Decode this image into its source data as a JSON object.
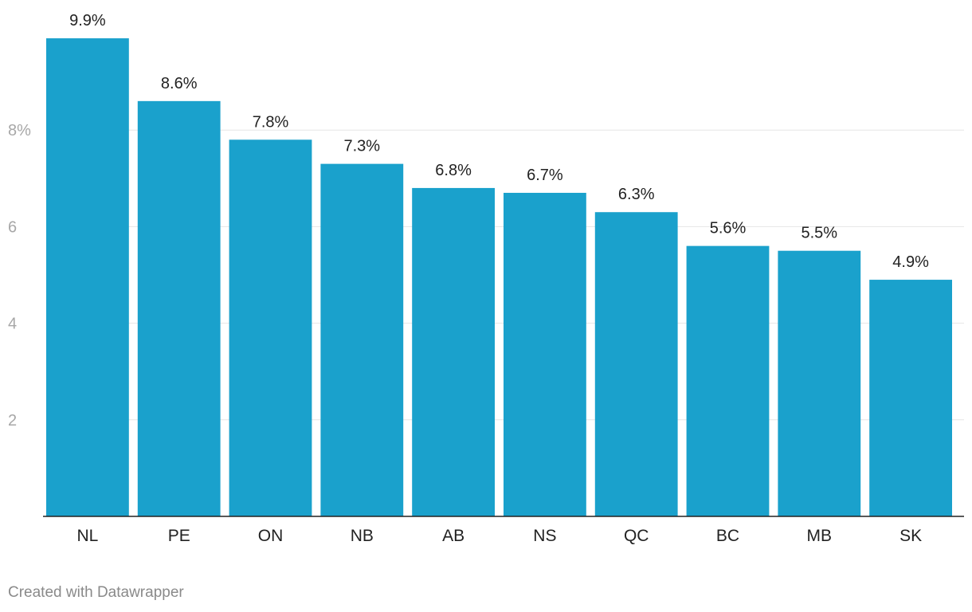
{
  "chart_data": {
    "type": "bar",
    "categories": [
      "NL",
      "PE",
      "ON",
      "NB",
      "AB",
      "NS",
      "QC",
      "BC",
      "MB",
      "SK"
    ],
    "values": [
      9.9,
      8.6,
      7.8,
      7.3,
      6.8,
      6.7,
      6.3,
      5.6,
      5.5,
      4.9
    ],
    "value_labels": [
      "9.9%",
      "8.6%",
      "7.8%",
      "7.3%",
      "6.8%",
      "6.7%",
      "6.3%",
      "5.6%",
      "5.5%",
      "4.9%"
    ],
    "yticks": [
      2,
      4,
      6,
      8
    ],
    "ytick_labels": [
      "2",
      "4",
      "6",
      "8%"
    ],
    "ylim": [
      0,
      10
    ],
    "grid": true,
    "title": "",
    "xlabel": "",
    "ylabel": "",
    "bar_color": "#1aa1cc"
  },
  "footer": {
    "credit": "Created with Datawrapper"
  }
}
